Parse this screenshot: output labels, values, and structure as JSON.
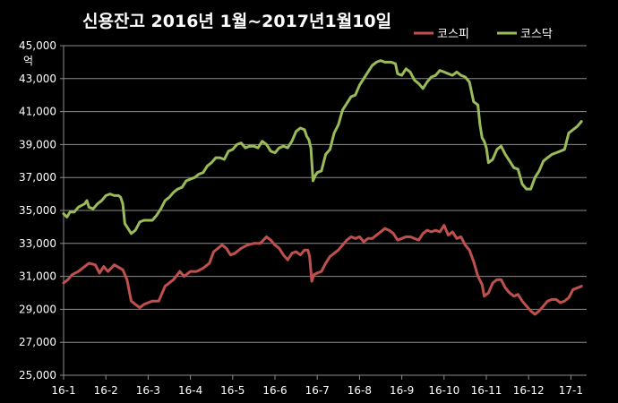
{
  "chart_data": {
    "type": "line",
    "title": "신용잔고  2016년 1월~2017년1월10일",
    "xlabel": "",
    "ylabel": "",
    "y_unit": "억",
    "ylim": [
      25000,
      45000
    ],
    "y_ticks": [
      "25,000",
      "27,000",
      "29,000",
      "31,000",
      "33,000",
      "35,000",
      "37,000",
      "39,000",
      "41,000",
      "43,000",
      "45,000"
    ],
    "x_ticks": [
      "16-1",
      "16-2",
      "16-3",
      "16-4",
      "16-5",
      "16-6",
      "16-7",
      "16-8",
      "16-9",
      "16-10",
      "16-11",
      "16-12",
      "17-1"
    ],
    "grid": true,
    "legend_position": "top-right",
    "series": [
      {
        "name": "코스피",
        "color": "#c0504d",
        "points": [
          [
            0.0,
            30600
          ],
          [
            0.1,
            30800
          ],
          [
            0.2,
            31100
          ],
          [
            0.35,
            31300
          ],
          [
            0.5,
            31600
          ],
          [
            0.6,
            31800
          ],
          [
            0.75,
            31700
          ],
          [
            0.85,
            31200
          ],
          [
            0.95,
            31600
          ],
          [
            1.05,
            31300
          ],
          [
            1.2,
            31700
          ],
          [
            1.4,
            31400
          ],
          [
            1.5,
            30800
          ],
          [
            1.6,
            29500
          ],
          [
            1.7,
            29300
          ],
          [
            1.8,
            29100
          ],
          [
            1.9,
            29300
          ],
          [
            2.0,
            29400
          ],
          [
            2.1,
            29500
          ],
          [
            2.25,
            29500
          ],
          [
            2.4,
            30400
          ],
          [
            2.6,
            30800
          ],
          [
            2.75,
            31300
          ],
          [
            2.85,
            31000
          ],
          [
            3.0,
            31300
          ],
          [
            3.15,
            31300
          ],
          [
            3.3,
            31500
          ],
          [
            3.45,
            31800
          ],
          [
            3.55,
            32500
          ],
          [
            3.65,
            32700
          ],
          [
            3.75,
            32900
          ],
          [
            3.85,
            32700
          ],
          [
            3.95,
            32300
          ],
          [
            4.05,
            32400
          ],
          [
            4.2,
            32700
          ],
          [
            4.35,
            32900
          ],
          [
            4.5,
            33000
          ],
          [
            4.65,
            33000
          ],
          [
            4.8,
            33400
          ],
          [
            4.9,
            33200
          ],
          [
            5.0,
            32900
          ],
          [
            5.1,
            32700
          ],
          [
            5.2,
            32300
          ],
          [
            5.3,
            32000
          ],
          [
            5.4,
            32400
          ],
          [
            5.5,
            32500
          ],
          [
            5.6,
            32300
          ],
          [
            5.7,
            32600
          ],
          [
            5.78,
            32600
          ],
          [
            5.82,
            32200
          ],
          [
            5.87,
            30700
          ],
          [
            5.92,
            31100
          ],
          [
            6.0,
            31200
          ],
          [
            6.1,
            31300
          ],
          [
            6.2,
            31800
          ],
          [
            6.3,
            32200
          ],
          [
            6.4,
            32400
          ],
          [
            6.5,
            32600
          ],
          [
            6.6,
            32900
          ],
          [
            6.7,
            33200
          ],
          [
            6.8,
            33400
          ],
          [
            6.9,
            33300
          ],
          [
            7.0,
            33400
          ],
          [
            7.1,
            33100
          ],
          [
            7.2,
            33300
          ],
          [
            7.3,
            33300
          ],
          [
            7.4,
            33500
          ],
          [
            7.5,
            33700
          ],
          [
            7.6,
            33900
          ],
          [
            7.7,
            33800
          ],
          [
            7.8,
            33600
          ],
          [
            7.9,
            33200
          ],
          [
            8.0,
            33300
          ],
          [
            8.1,
            33400
          ],
          [
            8.2,
            33400
          ],
          [
            8.3,
            33300
          ],
          [
            8.4,
            33200
          ],
          [
            8.5,
            33600
          ],
          [
            8.6,
            33800
          ],
          [
            8.7,
            33700
          ],
          [
            8.8,
            33800
          ],
          [
            8.9,
            33700
          ],
          [
            9.0,
            34100
          ],
          [
            9.1,
            33500
          ],
          [
            9.2,
            33700
          ],
          [
            9.3,
            33300
          ],
          [
            9.4,
            33400
          ],
          [
            9.5,
            32900
          ],
          [
            9.6,
            32600
          ],
          [
            9.7,
            31900
          ],
          [
            9.8,
            31000
          ],
          [
            9.9,
            30500
          ],
          [
            9.95,
            29800
          ],
          [
            10.05,
            30000
          ],
          [
            10.15,
            30600
          ],
          [
            10.25,
            30800
          ],
          [
            10.35,
            30800
          ],
          [
            10.45,
            30300
          ],
          [
            10.55,
            30000
          ],
          [
            10.65,
            29800
          ],
          [
            10.75,
            29900
          ],
          [
            10.85,
            29500
          ],
          [
            10.95,
            29200
          ],
          [
            11.05,
            28900
          ],
          [
            11.15,
            28700
          ],
          [
            11.25,
            28900
          ],
          [
            11.35,
            29200
          ],
          [
            11.45,
            29500
          ],
          [
            11.55,
            29600
          ],
          [
            11.65,
            29600
          ],
          [
            11.75,
            29400
          ],
          [
            11.85,
            29500
          ],
          [
            11.95,
            29700
          ],
          [
            12.05,
            30200
          ],
          [
            12.15,
            30300
          ],
          [
            12.25,
            30400
          ]
        ]
      },
      {
        "name": "코스닥",
        "color": "#9bbb59",
        "points": [
          [
            0.0,
            34800
          ],
          [
            0.08,
            34600
          ],
          [
            0.15,
            34900
          ],
          [
            0.25,
            34900
          ],
          [
            0.35,
            35200
          ],
          [
            0.5,
            35400
          ],
          [
            0.55,
            35600
          ],
          [
            0.6,
            35200
          ],
          [
            0.7,
            35100
          ],
          [
            0.8,
            35400
          ],
          [
            0.9,
            35600
          ],
          [
            1.0,
            35900
          ],
          [
            1.1,
            36000
          ],
          [
            1.2,
            35900
          ],
          [
            1.3,
            35900
          ],
          [
            1.35,
            35800
          ],
          [
            1.4,
            35400
          ],
          [
            1.45,
            34200
          ],
          [
            1.55,
            33800
          ],
          [
            1.6,
            33600
          ],
          [
            1.7,
            33800
          ],
          [
            1.8,
            34300
          ],
          [
            1.9,
            34400
          ],
          [
            2.0,
            34400
          ],
          [
            2.1,
            34400
          ],
          [
            2.2,
            34700
          ],
          [
            2.3,
            35100
          ],
          [
            2.4,
            35600
          ],
          [
            2.5,
            35800
          ],
          [
            2.6,
            36100
          ],
          [
            2.7,
            36300
          ],
          [
            2.8,
            36400
          ],
          [
            2.9,
            36800
          ],
          [
            3.0,
            36900
          ],
          [
            3.1,
            37000
          ],
          [
            3.2,
            37200
          ],
          [
            3.3,
            37300
          ],
          [
            3.4,
            37700
          ],
          [
            3.5,
            37900
          ],
          [
            3.6,
            38200
          ],
          [
            3.7,
            38200
          ],
          [
            3.8,
            38100
          ],
          [
            3.9,
            38600
          ],
          [
            4.0,
            38700
          ],
          [
            4.1,
            39000
          ],
          [
            4.2,
            39100
          ],
          [
            4.3,
            38800
          ],
          [
            4.4,
            38900
          ],
          [
            4.5,
            38900
          ],
          [
            4.6,
            38800
          ],
          [
            4.7,
            39200
          ],
          [
            4.8,
            39000
          ],
          [
            4.9,
            38600
          ],
          [
            5.0,
            38500
          ],
          [
            5.1,
            38800
          ],
          [
            5.2,
            38900
          ],
          [
            5.3,
            38800
          ],
          [
            5.4,
            39200
          ],
          [
            5.5,
            39800
          ],
          [
            5.6,
            40000
          ],
          [
            5.7,
            39900
          ],
          [
            5.75,
            39500
          ],
          [
            5.8,
            39300
          ],
          [
            5.85,
            38800
          ],
          [
            5.9,
            36800
          ],
          [
            5.95,
            37100
          ],
          [
            6.0,
            37300
          ],
          [
            6.1,
            37400
          ],
          [
            6.2,
            38400
          ],
          [
            6.3,
            38700
          ],
          [
            6.4,
            39700
          ],
          [
            6.5,
            40200
          ],
          [
            6.6,
            41100
          ],
          [
            6.7,
            41500
          ],
          [
            6.8,
            41900
          ],
          [
            6.9,
            42000
          ],
          [
            7.0,
            42600
          ],
          [
            7.1,
            43000
          ],
          [
            7.2,
            43400
          ],
          [
            7.3,
            43800
          ],
          [
            7.4,
            44000
          ],
          [
            7.5,
            44100
          ],
          [
            7.6,
            44000
          ],
          [
            7.7,
            44000
          ],
          [
            7.75,
            44000
          ],
          [
            7.85,
            43900
          ],
          [
            7.9,
            43300
          ],
          [
            8.0,
            43200
          ],
          [
            8.1,
            43600
          ],
          [
            8.2,
            43400
          ],
          [
            8.3,
            42900
          ],
          [
            8.4,
            42700
          ],
          [
            8.5,
            42400
          ],
          [
            8.6,
            42800
          ],
          [
            8.7,
            43100
          ],
          [
            8.8,
            43200
          ],
          [
            8.9,
            43500
          ],
          [
            9.0,
            43400
          ],
          [
            9.1,
            43300
          ],
          [
            9.2,
            43200
          ],
          [
            9.3,
            43400
          ],
          [
            9.4,
            43200
          ],
          [
            9.5,
            43100
          ],
          [
            9.6,
            42800
          ],
          [
            9.7,
            41600
          ],
          [
            9.8,
            41400
          ],
          [
            9.85,
            40200
          ],
          [
            9.9,
            39400
          ],
          [
            9.95,
            39200
          ],
          [
            10.0,
            38800
          ],
          [
            10.05,
            37900
          ],
          [
            10.15,
            38100
          ],
          [
            10.25,
            38700
          ],
          [
            10.35,
            38900
          ],
          [
            10.45,
            38400
          ],
          [
            10.55,
            38000
          ],
          [
            10.65,
            37600
          ],
          [
            10.75,
            37500
          ],
          [
            10.85,
            36600
          ],
          [
            10.95,
            36300
          ],
          [
            11.05,
            36300
          ],
          [
            11.15,
            37000
          ],
          [
            11.25,
            37400
          ],
          [
            11.35,
            38000
          ],
          [
            11.45,
            38200
          ],
          [
            11.55,
            38400
          ],
          [
            11.65,
            38500
          ],
          [
            11.75,
            38600
          ],
          [
            11.85,
            38700
          ],
          [
            11.95,
            39700
          ],
          [
            12.05,
            39900
          ],
          [
            12.15,
            40100
          ],
          [
            12.25,
            40400
          ]
        ]
      }
    ]
  }
}
